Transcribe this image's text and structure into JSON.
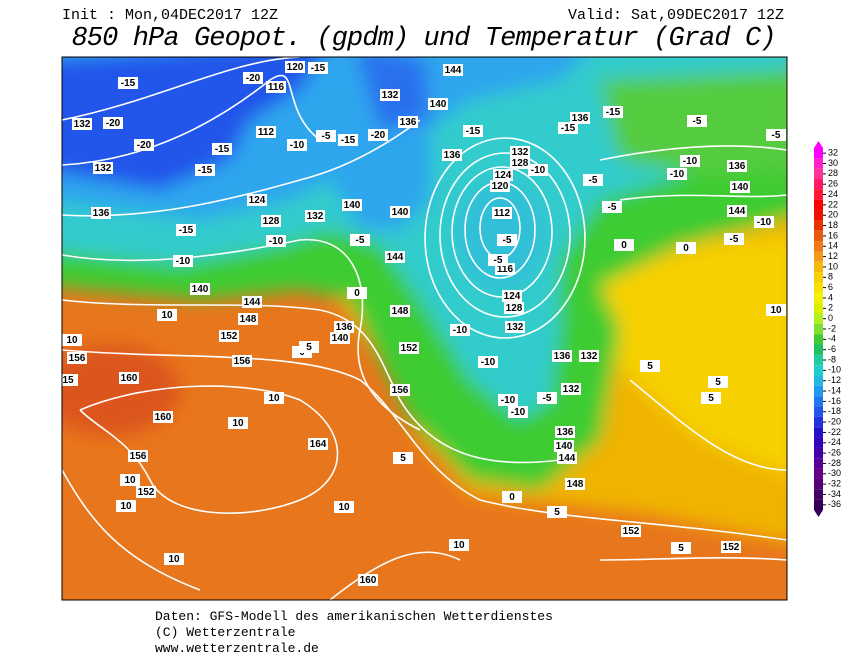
{
  "header": {
    "init": "Init : Mon,04DEC2017 12Z",
    "valid": "Valid: Sat,09DEC2017 12Z",
    "title": "850 hPa Geopot. (gpdm) und Temperatur (Grad C)"
  },
  "legend": {
    "ticks": [
      32,
      30,
      28,
      26,
      24,
      22,
      20,
      18,
      16,
      14,
      12,
      10,
      8,
      6,
      4,
      2,
      0,
      -2,
      -4,
      -6,
      -8,
      -10,
      -12,
      -14,
      -16,
      -18,
      -20,
      -22,
      -24,
      -26,
      -28,
      -30,
      -32,
      -34,
      -36
    ]
  },
  "map_labels": {
    "geopotential": [
      144,
      120,
      116,
      132,
      140,
      136,
      132,
      112,
      132,
      136,
      132,
      128,
      124,
      120,
      112,
      116,
      124,
      128,
      132,
      136,
      136,
      140,
      144,
      136,
      128,
      124,
      132,
      140,
      140,
      144,
      140,
      144,
      148,
      152,
      136,
      140,
      148,
      152,
      156,
      156,
      156,
      160,
      160,
      164,
      156,
      152,
      148,
      152,
      152,
      160,
      136,
      132,
      132,
      140,
      144,
      136
    ],
    "temperature": [
      -20,
      -15,
      -15,
      -20,
      -20,
      -15,
      -15,
      -10,
      -5,
      -15,
      -20,
      -15,
      -15,
      -15,
      -5,
      -5,
      -10,
      -10,
      -5,
      -5,
      -10,
      -5,
      0,
      0,
      -10,
      -5,
      -5,
      -15,
      -10,
      -5,
      -10,
      0,
      0,
      5,
      10,
      10,
      15,
      10,
      10,
      10,
      10,
      10,
      10,
      10,
      5,
      0,
      -10,
      -10,
      -10,
      -10,
      -5,
      5,
      5,
      5,
      10,
      5,
      5
    ]
  },
  "footer": {
    "line1": "Daten: GFS-Modell des amerikanischen Wetterdienstes",
    "line2": "(C) Wetterzentrale",
    "line3": "www.wetterzentrale.de"
  }
}
